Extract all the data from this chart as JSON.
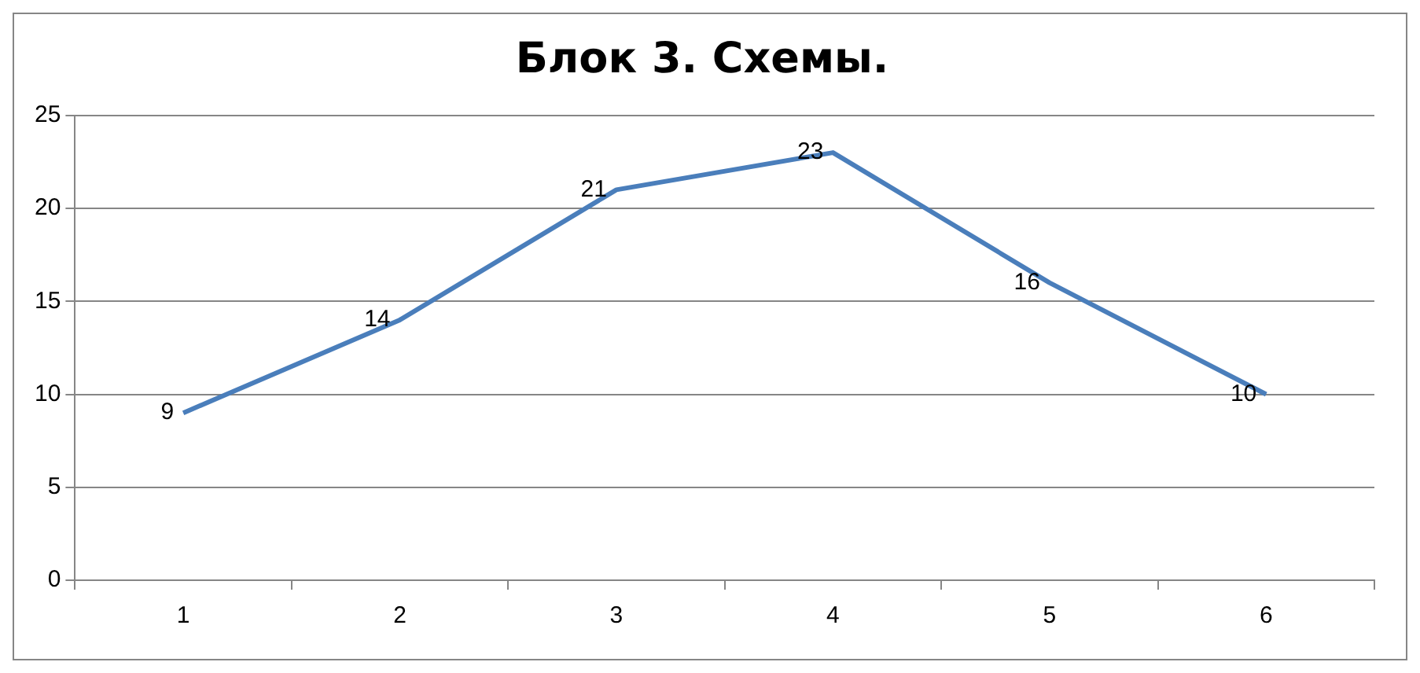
{
  "chart_data": {
    "type": "line",
    "title": "Блок 3. Схемы.",
    "categories": [
      "1",
      "2",
      "3",
      "4",
      "5",
      "6"
    ],
    "series": [
      {
        "color": "#4a7ebb",
        "values": [
          9,
          14,
          21,
          23,
          16,
          10
        ]
      }
    ],
    "ylim": [
      0,
      25
    ],
    "yticks": [
      0,
      5,
      10,
      15,
      20,
      25
    ],
    "grid": "y",
    "legend": false,
    "marker": "none",
    "line_style": "solid",
    "data_labels": true
  }
}
